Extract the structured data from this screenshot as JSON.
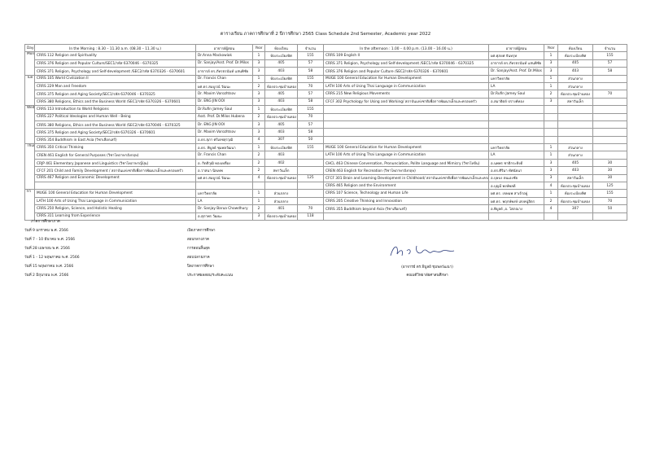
{
  "title": "ตารางเรียน ภาคการศึกษาที่ 2 ปีการศึกษา 2565  Class Schedule 2nd Semester, Academic year 2022",
  "table": {
    "header": [
      "Day",
      "In the Morning :  8.30 – 11.30 a.m. (08.30 – 11.30 น.)",
      "อาจารย์ผู้สอน",
      "Year",
      "ห้องเรียน",
      "จำนวน",
      "In the afternoon : 1.00 – 4.00 p.m. (13.00 – 16.00 น.)",
      "อาจารย์ผู้สอน",
      "Year",
      "ห้องเรียน",
      "จำนวน"
    ],
    "days": [
      {
        "day": "Mon",
        "rows": [
          [
            "CRRS 112  Religion and Spirituality",
            "Dr.Anna Mackowiak",
            1,
            "ห้องระเบียงทิศ",
            155,
            "CRRS 109 English II",
            "ผศ.ศุภยศ จันทรุท",
            1,
            "ห้องระเบียงทิศ",
            155
          ],
          [
            "CRRS 376 Religion and Popular Culture/SEC1/รหัส  6370046 - 6370325",
            "Dr. Sanjay/Asst. Prof. Dr.Milos",
            3,
            "405",
            57,
            "CRRS 371 Religion, Psychology and Self-development /SEC1/รหัส 6370046 - 6370325",
            "อาจารย์ ดร.ภัทรธรนันท์ แสนพิชัย",
            3,
            "405",
            57
          ],
          [
            "CRRS 371 Religion, Psychology and Self-development /SEC2/รหัส 6370326 - 6370601",
            "อาจารย์ ดร.ภัทรธรนันท์ แสนพิชัย",
            3,
            "403",
            58,
            "CRRS 376 Religion and Popular Culture /SEC2/รหัส 6370326 - 6370601",
            "Dr. Sanjay/Asst. Prof. Dr.Milos",
            3,
            "403",
            58
          ]
        ]
      },
      {
        "day": "Tue",
        "rows": [
          [
            "CRRS 105 World Civilization II",
            "Dr. Francis Chan",
            1,
            "ห้องระเบียงทิศ",
            155,
            "MUGE 100 General Education for Human Development",
            "มหาวิทยาลัย",
            1,
            "ส่วนกลาง",
            null
          ],
          [
            "CRRS 229 Man and Freedom",
            "ผศ.ดร.สมบูรณ์ วัฒนะ",
            2,
            "ห้องประชุมบ้านทอง",
            70,
            "LATH 100 Arts of Using Thai Language in Communication",
            "LA",
            1,
            "ส่วนกลาง",
            null
          ],
          [
            "CRRS 375 Religion and Aging Society/SEC1/รหัส  6370046 - 6370325",
            "Dr. Maxim Vorozhtsov",
            3,
            "405",
            57,
            "CRRS 215 New Religious Movements",
            "Dr.Rufin Jamey Saul",
            2,
            "ห้องประชุมบ้านทอง",
            70
          ],
          [
            "CRRS 380  Religions, Ethics and the Business World /SEC1/รหัส 6370326 - 6370601",
            "Dr. ENG JIN OOI",
            3,
            "403",
            58,
            "CFCF 302 Psychology for Using and Working/ สถาบันแห่งชาติเพื่อการพัฒนาเด็กและครอบครัว",
            "อ.สมาธิตย์ ปรางค์ทอง",
            3,
            "สหาวันเล็ก",
            null
          ]
        ]
      },
      {
        "day": "Wed",
        "rows": [
          [
            "CRRS 153 Introduction to World Religions",
            "Dr.Rufin Jamey Saul",
            1,
            "ห้องระเบียงทิศ",
            155,
            null,
            null,
            null,
            null,
            null
          ],
          [
            "CRRS 227 Political Ideologies and Human Well - Being",
            "Asst. Prof. Dr.Milos Hubena",
            2,
            "ห้องประชุมบ้านทอง",
            70,
            null,
            null,
            null,
            null,
            null
          ],
          [
            "CRRS 380  Religions, Ethics and the Business World /SEC2/รหัส 6370046 - 6370325",
            "Dr. ENG JIN OOI",
            3,
            "405",
            57,
            null,
            null,
            null,
            null,
            null
          ],
          [
            "CRRS 375 Religion and Aging Society/SEC2/รหัส 6370326 - 6370601",
            "Dr. Maxim Vorozhtsov",
            3,
            "403",
            58,
            null,
            null,
            null,
            null,
            null
          ],
          [
            "CRRS 354 Buddhism in East Asia (วิชาเลือกเสรี)",
            "อ.ดร.สุภา ศรีเดชสุรวุฒิ",
            4,
            "307",
            50,
            null,
            null,
            null,
            null,
            null
          ]
        ]
      },
      {
        "day": "Thur",
        "rows": [
          [
            "CRRS 350 Critical Thinking",
            "อ.ดร. พิบูลย์ ชุมพลวัฒนา",
            1,
            "ห้องระเบียงทิศ",
            155,
            "MUGE 100 General Education for Human Development",
            "มหาวิทยาลัย",
            1,
            "ส่วนกลาง",
            null
          ],
          [
            "CREN 461 English for General Purposes (วิชาโทภาษาอังกฤษ)",
            "Dr. Francis Chan",
            2,
            "403",
            null,
            "LATH 100 Arts of Using Thai Language in Communication",
            "LA",
            1,
            "ส่วนกลาง",
            null
          ],
          [
            "CRJP 461 Elementary Japanese and Linguistics (วิชาโทภาษาญี่ปุ่น)",
            "อ. กิตติวุฒิ ทองเหลือง",
            2,
            "402",
            null,
            "CHCL 463 Chinese Conversation, Pronunciation, Polite Language and Mimicry (วิชาโทจีน)",
            "อ.นพพร ชาติกระทิงดี",
            3,
            "405",
            30
          ],
          [
            "CFCF 201 Child and Family Development / สถาบันแห่งชาติเพื่อการพัฒนาเด็กและครอบครัว",
            "อ.วาสนา นิลเทพ",
            2,
            "สหาวันเล็ก",
            null,
            "CREN 463  English for Recreation (วิชาโทภาษาอังกฤษ)",
            "อ.ดร.ศิริมา ทัศนัยนา",
            3,
            "403",
            30
          ],
          [
            "CRRS 467 Religion and Economic Development",
            "ผศ.ดร.สมบูรณ์ วัฒนะ",
            4,
            "ห้องประชุมบ้านทอง",
            125,
            "CFCF 301 Brain and Learning Development in Childhood/ สถาบันแห่งชาติเพื่อการพัฒนาเด็กและครอบครัว",
            "อ.บุษบง ตนเองชัย",
            3,
            "สหาวันเล็ก",
            30
          ],
          [
            null,
            null,
            null,
            null,
            null,
            "CRRS 465 Religion and the Environment",
            "อ.บุญมี พงษ์พลดี",
            4,
            "ห้องประชุมบ้านทอง",
            125
          ]
        ]
      },
      {
        "day": "Fri",
        "rows": [
          [
            "MUGE 100 General Education for Human Development",
            "มหาวิทยาลัย",
            1,
            "ส่วนกลาง",
            null,
            "CRRS 107 Science, Technology and Human Life",
            "ผศ.ดร. เขษมพ สาเจ้าอยู่",
            1,
            "ห้องระเบียงทิศ",
            155
          ],
          [
            "LATH 100 Arts of Using Thai Language in Communication",
            "LA",
            1,
            "ส่วนกลาง",
            null,
            "CRRS 205 Creative Thinking and Innovation",
            "ผศ.ดร. พฤกษ์พงษ์ เสงหนู่จิตร",
            2,
            "ห้องประชุมบ้านทอง",
            70
          ],
          [
            "CRRS 250 Religion, Science, and Holistic Healing",
            "Dr. Sanjay Barua Chowdhury",
            2,
            "401",
            70,
            "CRRS 355 Buddhism beyond Asia (วิชาเลือกเสรี)",
            "อ.พิบูลย์ ,อ. โสภณาง",
            4,
            "307",
            50
          ],
          [
            "CRRS 311 Learning from Experience",
            "อ.สุภาพร วัฒนะ",
            3,
            "ห้องประชุมบ้านทอง",
            118,
            null,
            null,
            null,
            null,
            null
          ]
        ]
      }
    ]
  },
  "calendar": {
    "heading": "ภาคการศึกษาภาค",
    "items": [
      {
        "date": "วันที่ 9 มกราคม พ.ศ. 2566",
        "event": "เปิดภาคการศึกษา"
      },
      {
        "date": "วันที่ 7 - 10 มีนาคม พ.ศ. 2566",
        "event": "สอบกลางภาค"
      },
      {
        "date": "วันที่ 28 เมษายน พ.ศ. 2566",
        "event": "การสอนสิ้นสุด"
      },
      {
        "date": "วันที่ 1 - 12 พฤษภาคม พ.ศ. 2566",
        "event": "สอบปลายภาค"
      },
      {
        "date": "วันที่ 15 พฤษภาคม พ.ศ. 2566",
        "event": "ปิดภาคการศึกษา"
      },
      {
        "date": "วันที่ 2 มิถุนายน พ.ศ. 2566",
        "event": "ประกาศผลสอบ/ระดับคะแนน"
      }
    ]
  },
  "signature": {
    "name": "(อาจารย์ ดร.พิบูลย์ ชุมพลวัฒนา)",
    "position": "คณบดีวิทยาลัยศาสนศึกษา"
  }
}
